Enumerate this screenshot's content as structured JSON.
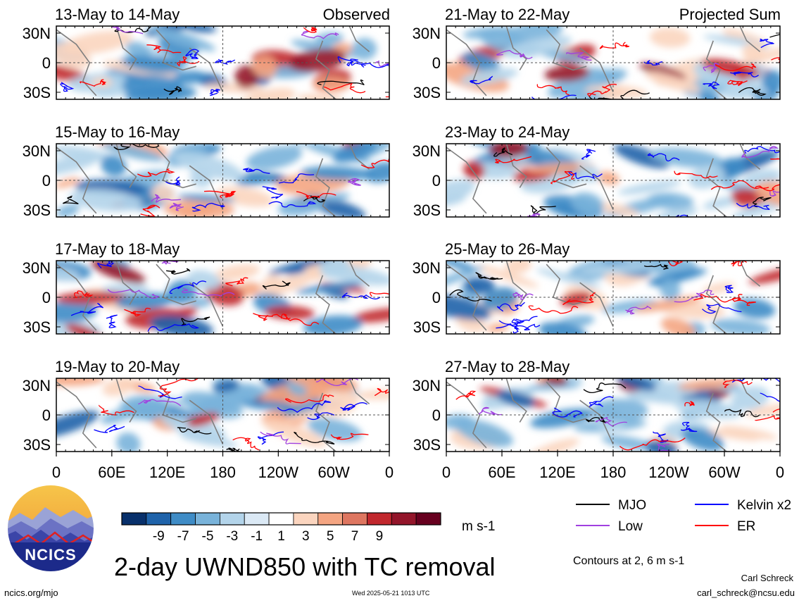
{
  "chart_data": {
    "type": "heatmap",
    "title": "2-day UWND850 with TC removal",
    "column_labels": [
      "Observed",
      "Projected Sum"
    ],
    "panels": {
      "observed": [
        {
          "label": "13-May to 14-May"
        },
        {
          "label": "15-May to 16-May"
        },
        {
          "label": "17-May to 18-May"
        },
        {
          "label": "19-May to 20-May"
        }
      ],
      "projected": [
        {
          "label": "21-May to 22-May"
        },
        {
          "label": "23-May to 24-May"
        },
        {
          "label": "25-May to 26-May"
        },
        {
          "label": "27-May to 28-May"
        }
      ]
    },
    "x_ticks": [
      "0",
      "60E",
      "120E",
      "180",
      "120W",
      "60W",
      "0"
    ],
    "y_ticks": [
      "30N",
      "0",
      "30S"
    ],
    "colorbar": {
      "units": "m s-1",
      "levels": [
        -9,
        -7,
        -5,
        -3,
        -1,
        1,
        3,
        5,
        7,
        9
      ],
      "colors": [
        "#08306b",
        "#1f63aa",
        "#3f8cc6",
        "#79b3da",
        "#b3d4ea",
        "#dbe9f5",
        "#ffffff",
        "#fbd5bf",
        "#f4a582",
        "#de7660",
        "#c1272d",
        "#93152a",
        "#67001f"
      ]
    },
    "contours": {
      "note": "Contours at 2, 6 m s-1",
      "legend": [
        {
          "name": "MJO",
          "color": "#000000"
        },
        {
          "name": "Kelvin x2",
          "color": "#0000ff"
        },
        {
          "name": "Low",
          "color": "#a040e0"
        },
        {
          "name": "ER",
          "color": "#ff0000"
        }
      ]
    }
  },
  "branding": {
    "logo_text": "NCICS",
    "url": "ncics.org/mjo",
    "timestamp": "Wed 2025-05-21 1013 UTC",
    "author": "Carl Schreck",
    "email": "carl_schreck@ncsu.edu"
  }
}
